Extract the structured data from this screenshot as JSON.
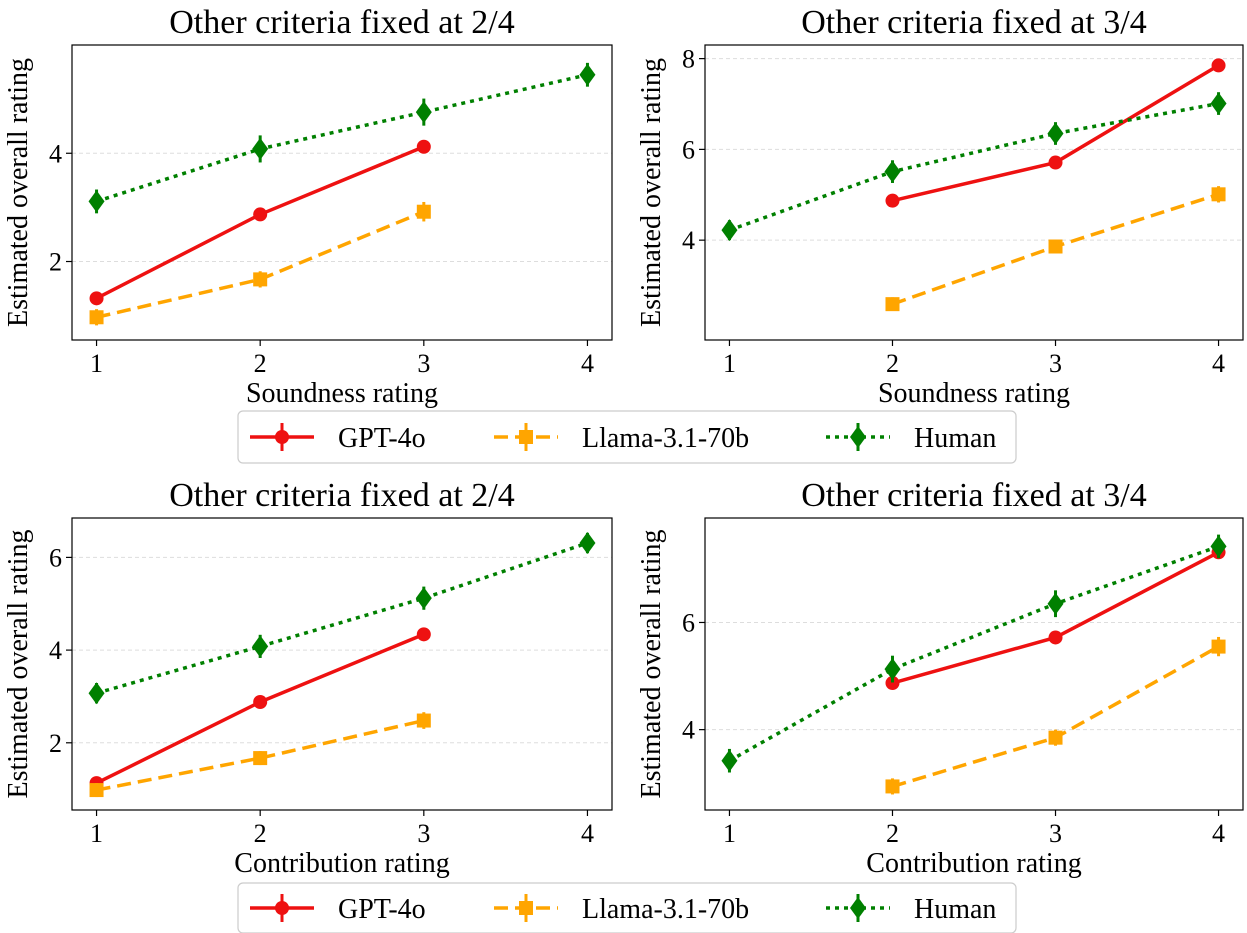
{
  "legend": [
    {
      "name": "GPT-4o",
      "color": "#ee1111",
      "dash": "solid",
      "marker": "circle"
    },
    {
      "name": "Llama-3.1-70b",
      "color": "#ffa500",
      "dash": "dashed",
      "marker": "square"
    },
    {
      "name": "Human",
      "color": "#008000",
      "dash": "dotted",
      "marker": "diamond"
    }
  ],
  "chart_data": [
    {
      "type": "line",
      "title": "Other criteria fixed at 2/4",
      "xlabel": "Soundness rating",
      "ylabel": "Estimated overall rating",
      "xlim": [
        0.85,
        4.15
      ],
      "ylim": [
        0.55,
        6.0
      ],
      "xticks": [
        1,
        2,
        3,
        4
      ],
      "yticks": [
        2,
        4
      ],
      "grid": "y",
      "series": [
        {
          "name": "GPT-4o",
          "x": [
            1,
            2,
            3
          ],
          "y": [
            1.32,
            2.87,
            4.12
          ],
          "err": [
            0.1,
            0.1,
            0.12
          ]
        },
        {
          "name": "Llama-3.1-70b",
          "x": [
            1,
            2,
            3
          ],
          "y": [
            0.97,
            1.67,
            2.92
          ],
          "err": [
            0.15,
            0.15,
            0.18
          ]
        },
        {
          "name": "Human",
          "x": [
            1,
            2,
            3,
            4
          ],
          "y": [
            3.11,
            4.08,
            4.76,
            5.45
          ],
          "err": [
            0.22,
            0.25,
            0.25,
            0.22
          ]
        }
      ]
    },
    {
      "type": "line",
      "title": "Other criteria fixed at 3/4",
      "xlabel": "Soundness rating",
      "ylabel": "Estimated overall rating",
      "xlim": [
        0.85,
        4.15
      ],
      "ylim": [
        1.8,
        8.3
      ],
      "xticks": [
        1,
        2,
        3,
        4
      ],
      "yticks": [
        4,
        6,
        8
      ],
      "grid": "y",
      "series": [
        {
          "name": "GPT-4o",
          "x": [
            2,
            3,
            4
          ],
          "y": [
            4.87,
            5.71,
            7.85
          ],
          "err": [
            0.1,
            0.1,
            0.12
          ]
        },
        {
          "name": "Llama-3.1-70b",
          "x": [
            2,
            3,
            4
          ],
          "y": [
            2.59,
            3.86,
            5.01
          ],
          "err": [
            0.15,
            0.15,
            0.18
          ]
        },
        {
          "name": "Human",
          "x": [
            1,
            2,
            3,
            4
          ],
          "y": [
            4.22,
            5.51,
            6.35,
            7.01
          ],
          "err": [
            0.22,
            0.25,
            0.25,
            0.25
          ]
        }
      ]
    },
    {
      "type": "line",
      "title": "Other criteria fixed at 2/4",
      "xlabel": "Contribution rating",
      "ylabel": "Estimated overall rating",
      "xlim": [
        0.85,
        4.15
      ],
      "ylim": [
        0.55,
        6.85
      ],
      "xticks": [
        1,
        2,
        3,
        4
      ],
      "yticks": [
        2,
        4,
        6
      ],
      "grid": "y",
      "series": [
        {
          "name": "GPT-4o",
          "x": [
            1,
            2,
            3
          ],
          "y": [
            1.13,
            2.88,
            4.34
          ],
          "err": [
            0.1,
            0.1,
            0.12
          ]
        },
        {
          "name": "Llama-3.1-70b",
          "x": [
            1,
            2,
            3
          ],
          "y": [
            0.98,
            1.67,
            2.48
          ],
          "err": [
            0.15,
            0.15,
            0.18
          ]
        },
        {
          "name": "Human",
          "x": [
            1,
            2,
            3,
            4
          ],
          "y": [
            3.07,
            4.08,
            5.12,
            6.31
          ],
          "err": [
            0.22,
            0.25,
            0.25,
            0.22
          ]
        }
      ]
    },
    {
      "type": "line",
      "title": "Other criteria fixed at 3/4",
      "xlabel": "Contribution rating",
      "ylabel": "Estimated overall rating",
      "xlim": [
        0.85,
        4.15
      ],
      "ylim": [
        2.5,
        7.95
      ],
      "xticks": [
        1,
        2,
        3,
        4
      ],
      "yticks": [
        4,
        6
      ],
      "grid": "y",
      "series": [
        {
          "name": "GPT-4o",
          "x": [
            2,
            3,
            4
          ],
          "y": [
            4.87,
            5.72,
            7.31
          ],
          "err": [
            0.1,
            0.1,
            0.12
          ]
        },
        {
          "name": "Llama-3.1-70b",
          "x": [
            2,
            3,
            4
          ],
          "y": [
            2.94,
            3.85,
            5.55
          ],
          "err": [
            0.15,
            0.15,
            0.18
          ]
        },
        {
          "name": "Human",
          "x": [
            1,
            2,
            3,
            4
          ],
          "y": [
            3.42,
            5.13,
            6.35,
            7.42
          ],
          "err": [
            0.22,
            0.25,
            0.25,
            0.22
          ]
        }
      ]
    }
  ]
}
